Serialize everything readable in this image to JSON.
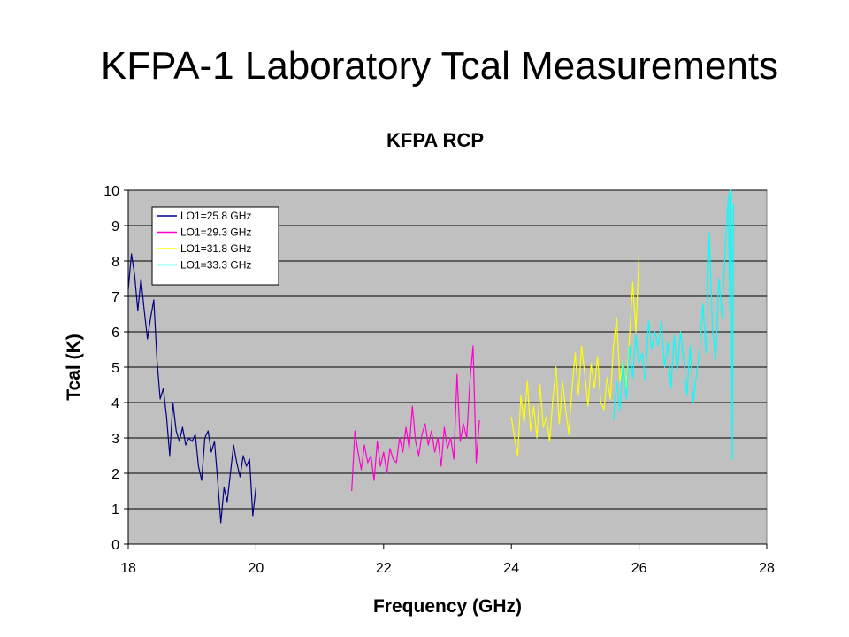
{
  "slide_title": "KFPA-1 Laboratory Tcal Measurements",
  "chart_data": {
    "type": "line",
    "title": "KFPA RCP",
    "xlabel": "Frequency (GHz)",
    "ylabel": "Tcal (K)",
    "xlim": [
      18,
      28
    ],
    "ylim": [
      0,
      10
    ],
    "xticks": [
      18,
      20,
      22,
      24,
      26,
      28
    ],
    "yticks": [
      0,
      1,
      2,
      3,
      4,
      5,
      6,
      7,
      8,
      9,
      10
    ],
    "grid": true,
    "plot_background": "#c0c0c0",
    "legend_position": "top-left",
    "series": [
      {
        "name": "LO1=25.8 GHz",
        "color": "#000080",
        "x": [
          18.0,
          18.05,
          18.1,
          18.15,
          18.2,
          18.25,
          18.3,
          18.35,
          18.4,
          18.45,
          18.5,
          18.55,
          18.6,
          18.65,
          18.7,
          18.75,
          18.8,
          18.85,
          18.9,
          18.95,
          19.0,
          19.05,
          19.1,
          19.15,
          19.2,
          19.25,
          19.3,
          19.35,
          19.4,
          19.45,
          19.5,
          19.55,
          19.6,
          19.65,
          19.7,
          19.75,
          19.8,
          19.85,
          19.9,
          19.95,
          20.0
        ],
        "y": [
          7.2,
          8.2,
          7.6,
          6.6,
          7.5,
          6.6,
          5.8,
          6.4,
          6.9,
          5.2,
          4.1,
          4.4,
          3.6,
          2.5,
          4.0,
          3.2,
          2.9,
          3.3,
          2.8,
          3.0,
          2.9,
          3.1,
          2.2,
          1.8,
          3.0,
          3.2,
          2.6,
          2.9,
          1.8,
          0.6,
          1.6,
          1.2,
          2.0,
          2.8,
          2.3,
          1.9,
          2.5,
          2.2,
          2.4,
          0.8,
          1.6
        ]
      },
      {
        "name": "LO1=29.3 GHz",
        "color": "#ff00cc",
        "x": [
          21.5,
          21.55,
          21.6,
          21.65,
          21.7,
          21.75,
          21.8,
          21.85,
          21.9,
          21.95,
          22.0,
          22.05,
          22.1,
          22.15,
          22.2,
          22.25,
          22.3,
          22.35,
          22.4,
          22.45,
          22.5,
          22.55,
          22.6,
          22.65,
          22.7,
          22.75,
          22.8,
          22.85,
          22.9,
          22.95,
          23.0,
          23.05,
          23.1,
          23.15,
          23.2,
          23.25,
          23.3,
          23.35,
          23.4,
          23.45,
          23.5
        ],
        "y": [
          1.5,
          3.2,
          2.6,
          2.1,
          2.8,
          2.3,
          2.5,
          1.8,
          2.9,
          2.2,
          2.6,
          2.0,
          2.7,
          2.4,
          2.3,
          3.0,
          2.6,
          3.3,
          2.7,
          3.9,
          2.9,
          2.5,
          3.1,
          3.4,
          2.8,
          3.2,
          2.6,
          3.0,
          2.2,
          3.3,
          2.7,
          3.0,
          2.4,
          4.8,
          2.9,
          3.4,
          3.0,
          4.6,
          5.6,
          2.3,
          3.5
        ]
      },
      {
        "name": "LO1=31.8 GHz",
        "color": "#ffff00",
        "x": [
          24.0,
          24.05,
          24.1,
          24.15,
          24.2,
          24.25,
          24.3,
          24.35,
          24.4,
          24.45,
          24.5,
          24.55,
          24.6,
          24.65,
          24.7,
          24.75,
          24.8,
          24.85,
          24.9,
          24.95,
          25.0,
          25.05,
          25.1,
          25.15,
          25.2,
          25.25,
          25.3,
          25.35,
          25.4,
          25.45,
          25.5,
          25.55,
          25.6,
          25.65,
          25.7,
          25.75,
          25.8,
          25.85,
          25.9,
          25.95,
          26.0
        ],
        "y": [
          3.6,
          3.0,
          2.5,
          4.2,
          3.4,
          4.6,
          3.2,
          3.9,
          3.0,
          4.5,
          3.3,
          3.6,
          2.9,
          4.1,
          5.0,
          3.4,
          4.6,
          3.8,
          3.1,
          4.4,
          5.4,
          4.2,
          5.6,
          4.8,
          3.9,
          5.1,
          4.4,
          5.3,
          4.0,
          3.8,
          4.7,
          4.1,
          5.6,
          6.4,
          4.6,
          5.2,
          4.4,
          5.8,
          7.4,
          6.0,
          8.2
        ]
      },
      {
        "name": "LO1=33.3 GHz",
        "color": "#00ffff",
        "x": [
          25.6,
          25.65,
          25.7,
          25.75,
          25.8,
          25.85,
          25.9,
          25.95,
          26.0,
          26.05,
          26.1,
          26.15,
          26.2,
          26.25,
          26.3,
          26.35,
          26.4,
          26.45,
          26.5,
          26.55,
          26.6,
          26.65,
          26.7,
          26.75,
          26.8,
          26.85,
          26.9,
          26.95,
          27.0,
          27.05,
          27.1,
          27.15,
          27.2,
          27.25,
          27.3,
          27.35,
          27.4,
          27.42,
          27.44,
          27.46,
          27.48
        ],
        "y": [
          3.5,
          4.6,
          3.8,
          5.2,
          4.1,
          5.6,
          4.7,
          5.9,
          5.1,
          5.4,
          4.6,
          6.3,
          5.5,
          6.0,
          5.6,
          6.3,
          5.0,
          5.7,
          4.4,
          5.9,
          4.9,
          6.0,
          5.2,
          4.2,
          5.6,
          4.0,
          4.8,
          5.5,
          6.8,
          5.4,
          8.8,
          6.1,
          5.2,
          7.5,
          6.4,
          8.4,
          9.9,
          6.6,
          10.0,
          2.4,
          9.6
        ]
      }
    ]
  }
}
